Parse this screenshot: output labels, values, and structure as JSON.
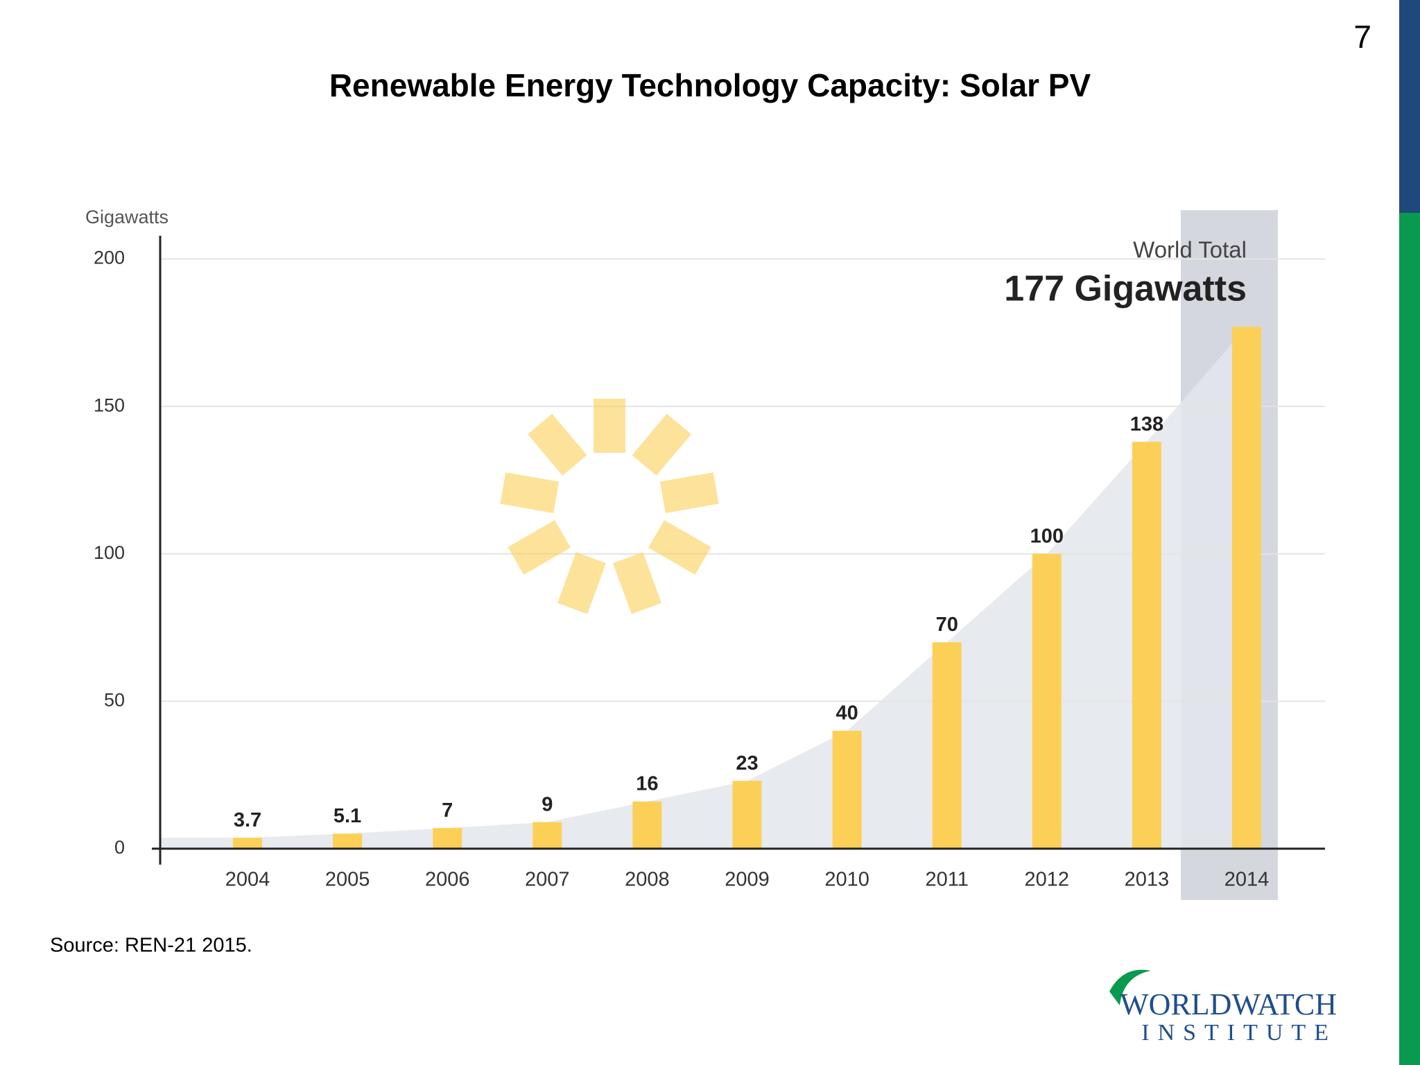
{
  "page_number": "7",
  "source": "Source: REN-21 2015.",
  "logo": {
    "name": "WORLDWATCH",
    "subtitle": "INSTITUTE"
  },
  "chart_data": {
    "type": "bar",
    "title": "Renewable Energy Technology Capacity: Solar PV",
    "y_label": "Gigawatts",
    "annotation": {
      "label": "World Total",
      "value": "177 Gigawatts"
    },
    "categories": [
      "2004",
      "2005",
      "2006",
      "2007",
      "2008",
      "2009",
      "2010",
      "2011",
      "2012",
      "2013",
      "2014"
    ],
    "values": [
      3.7,
      5.1,
      7,
      9,
      16,
      23,
      40,
      70,
      100,
      138,
      177
    ],
    "color": "#fcd057",
    "ylim": [
      0,
      200
    ],
    "yticks": [
      0,
      50,
      100,
      150,
      200
    ],
    "grid": true
  }
}
